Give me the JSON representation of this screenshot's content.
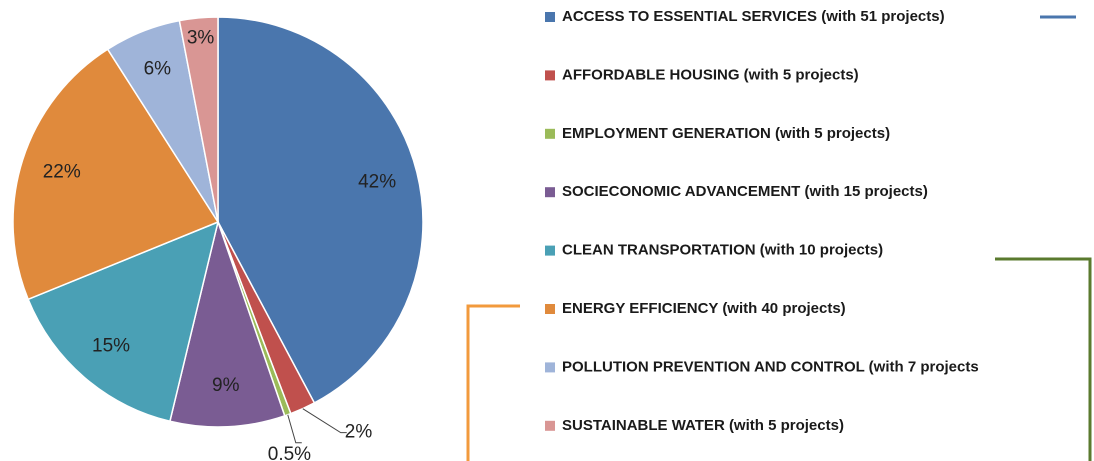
{
  "chart_data": {
    "type": "pie",
    "categories": [
      "ACCESS TO ESSENTIAL SERVICES (with 51 projects)",
      "AFFORDABLE HOUSING (with 5 projects)",
      "EMPLOYMENT GENERATION  (with 5 projects)",
      "SOCIECONOMIC ADVANCEMENT  (with 15 projects)",
      "CLEAN TRANSPORTATION  (with 10 projects)",
      "ENERGY EFFICIENCY  (with 40 projects)",
      "POLLUTION PREVENTION AND CONTROL  (with 7 projects",
      "SUSTAINABLE WATER  (with 5 projects)"
    ],
    "values": [
      42,
      2,
      0.5,
      9,
      15,
      22,
      6,
      3
    ],
    "value_labels": [
      "42%",
      "2%",
      "0.5%",
      "9%",
      "15%",
      "22%",
      "6%",
      "3%"
    ],
    "colors": [
      "#4a76ad",
      "#c0504d",
      "#9bbb59",
      "#7a5c93",
      "#4aa0b5",
      "#e08a3c",
      "#9fb4d9",
      "#d99694"
    ],
    "legend": "right"
  }
}
